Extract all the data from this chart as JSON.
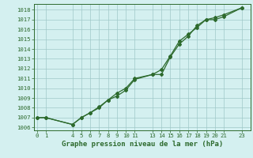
{
  "line1_x": [
    0,
    1,
    4,
    5,
    6,
    7,
    8,
    9,
    10,
    11,
    13,
    14,
    15,
    16,
    17,
    18,
    19,
    20,
    21,
    23
  ],
  "line1_y": [
    1007.0,
    1007.0,
    1006.3,
    1007.0,
    1007.5,
    1008.1,
    1008.8,
    1009.5,
    1010.0,
    1011.0,
    1011.4,
    1011.4,
    1013.2,
    1014.5,
    1015.3,
    1016.4,
    1017.0,
    1017.2,
    1017.5,
    1018.2
  ],
  "line2_x": [
    0,
    1,
    4,
    5,
    6,
    7,
    8,
    9,
    10,
    11,
    13,
    14,
    15,
    16,
    17,
    18,
    19,
    20,
    21,
    23
  ],
  "line2_y": [
    1007.0,
    1007.0,
    1006.3,
    1007.0,
    1007.5,
    1008.0,
    1008.8,
    1009.2,
    1009.8,
    1010.9,
    1011.4,
    1011.9,
    1013.3,
    1014.8,
    1015.5,
    1016.2,
    1017.0,
    1017.0,
    1017.3,
    1018.2
  ],
  "line_color": "#2d6a2d",
  "bg_color": "#d4f0f0",
  "grid_color": "#a0c8c8",
  "xlabel": "Graphe pression niveau de la mer (hPa)",
  "xticks": [
    0,
    1,
    4,
    5,
    6,
    7,
    8,
    9,
    10,
    11,
    13,
    14,
    15,
    16,
    17,
    18,
    19,
    20,
    21,
    23
  ],
  "xlim": [
    -0.3,
    24.0
  ],
  "ylim": [
    1005.7,
    1018.6
  ],
  "yticks": [
    1006,
    1007,
    1008,
    1009,
    1010,
    1011,
    1012,
    1013,
    1014,
    1015,
    1016,
    1017,
    1018
  ],
  "tick_fontsize": 5.2,
  "xlabel_fontsize": 6.5,
  "marker": "D",
  "markersize": 2.0,
  "linewidth": 0.9
}
